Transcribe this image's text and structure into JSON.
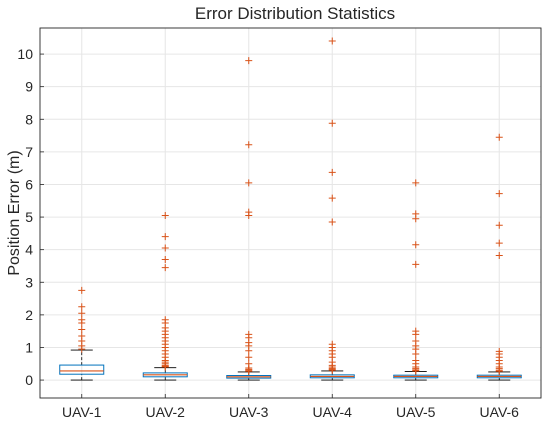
{
  "chart_data": {
    "type": "box",
    "title": "Error Distribution Statistics",
    "xlabel": "",
    "ylabel": "Position Error (m)",
    "ylim": [
      -0.55,
      10.8
    ],
    "yticks": [
      0,
      1,
      2,
      3,
      4,
      5,
      6,
      7,
      8,
      9,
      10
    ],
    "grid": true,
    "categories": [
      "UAV-1",
      "UAV-2",
      "UAV-3",
      "UAV-4",
      "UAV-5",
      "UAV-6"
    ],
    "colors": {
      "box": "#0072BD",
      "median": "#D95319",
      "outlier": "#D95319",
      "whisker": "#000000",
      "grid": "#E6E6E6",
      "axis": "#262626"
    },
    "boxes": [
      {
        "name": "UAV-1",
        "whisker_low": 0.0,
        "q1": 0.18,
        "median": 0.28,
        "q3": 0.46,
        "whisker_high": 0.92,
        "outliers": [
          0.95,
          1.05,
          1.2,
          1.35,
          1.55,
          1.75,
          1.85,
          2.05,
          2.25,
          2.75
        ]
      },
      {
        "name": "UAV-2",
        "whisker_low": 0.0,
        "q1": 0.1,
        "median": 0.16,
        "q3": 0.22,
        "whisker_high": 0.38,
        "outliers": [
          0.4,
          0.42,
          0.45,
          0.5,
          0.55,
          0.6,
          0.7,
          0.8,
          0.9,
          1.0,
          1.1,
          1.2,
          1.3,
          1.4,
          1.5,
          1.6,
          1.75,
          1.85,
          3.45,
          3.7,
          4.05,
          4.4,
          5.05
        ]
      },
      {
        "name": "UAV-3",
        "whisker_low": 0.0,
        "q1": 0.06,
        "median": 0.1,
        "q3": 0.14,
        "whisker_high": 0.25,
        "outliers": [
          0.27,
          0.3,
          0.33,
          0.37,
          0.5,
          0.7,
          0.9,
          1.05,
          1.15,
          1.3,
          1.4,
          5.05,
          5.15,
          6.05,
          7.22,
          9.8
        ]
      },
      {
        "name": "UAV-4",
        "whisker_low": 0.0,
        "q1": 0.07,
        "median": 0.11,
        "q3": 0.16,
        "whisker_high": 0.28,
        "outliers": [
          0.3,
          0.33,
          0.36,
          0.4,
          0.45,
          0.55,
          0.7,
          0.8,
          0.9,
          1.0,
          1.1,
          4.85,
          5.58,
          6.37,
          7.88,
          10.4
        ]
      },
      {
        "name": "UAV-5",
        "whisker_low": 0.0,
        "q1": 0.07,
        "median": 0.11,
        "q3": 0.15,
        "whisker_high": 0.26,
        "outliers": [
          0.28,
          0.31,
          0.35,
          0.4,
          0.5,
          0.6,
          0.8,
          0.95,
          1.05,
          1.2,
          1.4,
          1.5,
          3.55,
          4.15,
          4.95,
          5.1,
          6.05
        ]
      },
      {
        "name": "UAV-6",
        "whisker_low": 0.0,
        "q1": 0.07,
        "median": 0.11,
        "q3": 0.15,
        "whisker_high": 0.25,
        "outliers": [
          0.27,
          0.3,
          0.35,
          0.4,
          0.5,
          0.6,
          0.7,
          0.8,
          0.88,
          3.82,
          4.2,
          4.75,
          5.72,
          7.45
        ]
      }
    ]
  }
}
